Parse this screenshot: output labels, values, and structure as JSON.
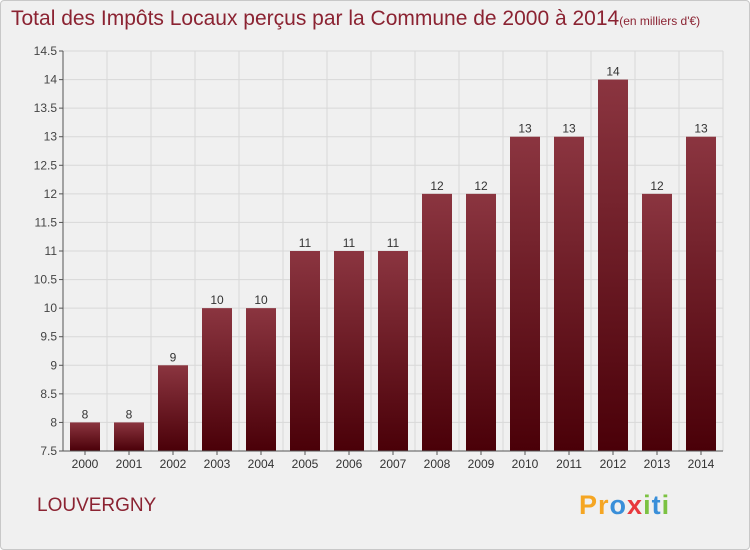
{
  "title": "Total des Impôts Locaux perçus par la Commune de 2000 à 2014",
  "unit_label": "(en milliers d'€)",
  "commune": "LOUVERGNY",
  "logo_text": "Proxiti",
  "logo_letters": [
    {
      "ch": "P",
      "color": "#f5a623"
    },
    {
      "ch": "r",
      "color": "#f5a623"
    },
    {
      "ch": "o",
      "color": "#3a8fd9"
    },
    {
      "ch": "x",
      "color": "#e8383d"
    },
    {
      "ch": "i",
      "color": "#7cc242"
    },
    {
      "ch": "t",
      "color": "#3a8fd9"
    },
    {
      "ch": "i",
      "color": "#7cc242"
    }
  ],
  "colors": {
    "bar_top": "#8b3540",
    "bar_bottom": "#4a0008",
    "title": "#8b2332",
    "axis": "#555555",
    "grid": "#d8d8d8"
  },
  "chart_data": {
    "type": "bar",
    "title": "Total des Impôts Locaux perçus par la Commune de 2000 à 2014",
    "xlabel": "",
    "ylabel": "",
    "categories": [
      "2000",
      "2001",
      "2002",
      "2003",
      "2004",
      "2005",
      "2006",
      "2007",
      "2008",
      "2009",
      "2010",
      "2011",
      "2012",
      "2013",
      "2014"
    ],
    "values": [
      8,
      8,
      9,
      10,
      10,
      11,
      11,
      11,
      12,
      12,
      13,
      13,
      14,
      12,
      13
    ],
    "value_labels": [
      "8",
      "8",
      "9",
      "10",
      "10",
      "11",
      "11",
      "11",
      "12",
      "12",
      "13",
      "13",
      "14",
      "12",
      "13"
    ],
    "ylim": [
      7.5,
      14.5
    ],
    "yticks": [
      7.5,
      8,
      8.5,
      9,
      9.5,
      10,
      10.5,
      11,
      11.5,
      12,
      12.5,
      13,
      13.5,
      14,
      14.5
    ],
    "ytick_labels": [
      "7.5",
      "8",
      "8.5",
      "9",
      "9.5",
      "10",
      "10.5",
      "11",
      "11.5",
      "12",
      "12.5",
      "13",
      "13.5",
      "14",
      "14.5"
    ],
    "grid": true,
    "legend": "none"
  }
}
